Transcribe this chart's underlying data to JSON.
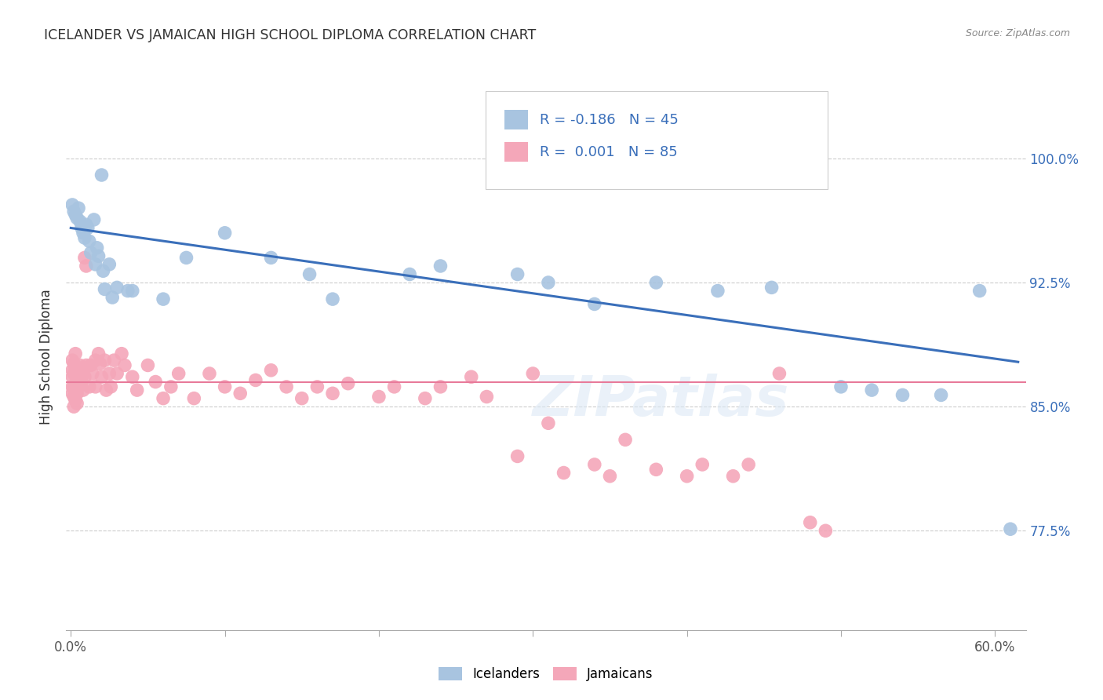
{
  "title": "ICELANDER VS JAMAICAN HIGH SCHOOL DIPLOMA CORRELATION CHART",
  "source": "Source: ZipAtlas.com",
  "ylabel": "High School Diploma",
  "ytick_labels": [
    "77.5%",
    "85.0%",
    "92.5%",
    "100.0%"
  ],
  "ytick_values": [
    0.775,
    0.85,
    0.925,
    1.0
  ],
  "xlim": [
    -0.003,
    0.62
  ],
  "ylim": [
    0.715,
    1.045
  ],
  "watermark": "ZIPatlas",
  "legend_R_ice": "R = -0.186",
  "legend_N_ice": "N = 45",
  "legend_R_jam": "R =  0.001",
  "legend_N_jam": "N = 85",
  "blue_color": "#a8c4e0",
  "pink_color": "#f4a7b9",
  "blue_line_color": "#3a6fba",
  "pink_line_color": "#e87a9a",
  "icelander_points": [
    [
      0.001,
      0.972
    ],
    [
      0.002,
      0.968
    ],
    [
      0.003,
      0.966
    ],
    [
      0.004,
      0.964
    ],
    [
      0.005,
      0.97
    ],
    [
      0.006,
      0.962
    ],
    [
      0.007,
      0.958
    ],
    [
      0.008,
      0.955
    ],
    [
      0.009,
      0.952
    ],
    [
      0.01,
      0.96
    ],
    [
      0.011,
      0.958
    ],
    [
      0.012,
      0.95
    ],
    [
      0.013,
      0.943
    ],
    [
      0.015,
      0.963
    ],
    [
      0.016,
      0.936
    ],
    [
      0.017,
      0.946
    ],
    [
      0.018,
      0.941
    ],
    [
      0.02,
      0.99
    ],
    [
      0.021,
      0.932
    ],
    [
      0.022,
      0.921
    ],
    [
      0.025,
      0.936
    ],
    [
      0.027,
      0.916
    ],
    [
      0.03,
      0.922
    ],
    [
      0.037,
      0.92
    ],
    [
      0.04,
      0.92
    ],
    [
      0.06,
      0.915
    ],
    [
      0.075,
      0.94
    ],
    [
      0.1,
      0.955
    ],
    [
      0.13,
      0.94
    ],
    [
      0.155,
      0.93
    ],
    [
      0.17,
      0.915
    ],
    [
      0.22,
      0.93
    ],
    [
      0.24,
      0.935
    ],
    [
      0.29,
      0.93
    ],
    [
      0.31,
      0.925
    ],
    [
      0.34,
      0.912
    ],
    [
      0.38,
      0.925
    ],
    [
      0.42,
      0.92
    ],
    [
      0.455,
      0.922
    ],
    [
      0.5,
      0.862
    ],
    [
      0.52,
      0.86
    ],
    [
      0.54,
      0.857
    ],
    [
      0.565,
      0.857
    ],
    [
      0.59,
      0.92
    ],
    [
      0.61,
      0.776
    ]
  ],
  "jamaican_points": [
    [
      0.001,
      0.878
    ],
    [
      0.001,
      0.872
    ],
    [
      0.001,
      0.868
    ],
    [
      0.001,
      0.862
    ],
    [
      0.001,
      0.858
    ],
    [
      0.002,
      0.876
    ],
    [
      0.002,
      0.87
    ],
    [
      0.002,
      0.862
    ],
    [
      0.002,
      0.856
    ],
    [
      0.002,
      0.85
    ],
    [
      0.003,
      0.882
    ],
    [
      0.003,
      0.873
    ],
    [
      0.003,
      0.864
    ],
    [
      0.003,
      0.86
    ],
    [
      0.003,
      0.854
    ],
    [
      0.004,
      0.865
    ],
    [
      0.004,
      0.858
    ],
    [
      0.004,
      0.852
    ],
    [
      0.005,
      0.87
    ],
    [
      0.005,
      0.862
    ],
    [
      0.006,
      0.875
    ],
    [
      0.006,
      0.866
    ],
    [
      0.007,
      0.873
    ],
    [
      0.007,
      0.865
    ],
    [
      0.008,
      0.87
    ],
    [
      0.008,
      0.86
    ],
    [
      0.009,
      0.94
    ],
    [
      0.009,
      0.868
    ],
    [
      0.01,
      0.935
    ],
    [
      0.01,
      0.875
    ],
    [
      0.012,
      0.862
    ],
    [
      0.013,
      0.875
    ],
    [
      0.014,
      0.87
    ],
    [
      0.016,
      0.878
    ],
    [
      0.016,
      0.862
    ],
    [
      0.018,
      0.882
    ],
    [
      0.019,
      0.876
    ],
    [
      0.02,
      0.868
    ],
    [
      0.022,
      0.878
    ],
    [
      0.023,
      0.86
    ],
    [
      0.025,
      0.87
    ],
    [
      0.026,
      0.862
    ],
    [
      0.028,
      0.878
    ],
    [
      0.03,
      0.87
    ],
    [
      0.033,
      0.882
    ],
    [
      0.035,
      0.875
    ],
    [
      0.04,
      0.868
    ],
    [
      0.043,
      0.86
    ],
    [
      0.05,
      0.875
    ],
    [
      0.055,
      0.865
    ],
    [
      0.06,
      0.855
    ],
    [
      0.065,
      0.862
    ],
    [
      0.07,
      0.87
    ],
    [
      0.08,
      0.855
    ],
    [
      0.09,
      0.87
    ],
    [
      0.1,
      0.862
    ],
    [
      0.11,
      0.858
    ],
    [
      0.12,
      0.866
    ],
    [
      0.13,
      0.872
    ],
    [
      0.14,
      0.862
    ],
    [
      0.15,
      0.855
    ],
    [
      0.16,
      0.862
    ],
    [
      0.17,
      0.858
    ],
    [
      0.18,
      0.864
    ],
    [
      0.2,
      0.856
    ],
    [
      0.21,
      0.862
    ],
    [
      0.23,
      0.855
    ],
    [
      0.24,
      0.862
    ],
    [
      0.26,
      0.868
    ],
    [
      0.27,
      0.856
    ],
    [
      0.29,
      0.82
    ],
    [
      0.3,
      0.87
    ],
    [
      0.31,
      0.84
    ],
    [
      0.32,
      0.81
    ],
    [
      0.34,
      0.815
    ],
    [
      0.35,
      0.808
    ],
    [
      0.36,
      0.83
    ],
    [
      0.38,
      0.812
    ],
    [
      0.4,
      0.808
    ],
    [
      0.41,
      0.815
    ],
    [
      0.43,
      0.808
    ],
    [
      0.44,
      0.815
    ],
    [
      0.46,
      0.87
    ],
    [
      0.48,
      0.78
    ],
    [
      0.49,
      0.775
    ]
  ],
  "blue_trend_x": [
    0.0,
    0.615
  ],
  "blue_trend_y": [
    0.958,
    0.877
  ],
  "pink_trend_y": 0.865
}
